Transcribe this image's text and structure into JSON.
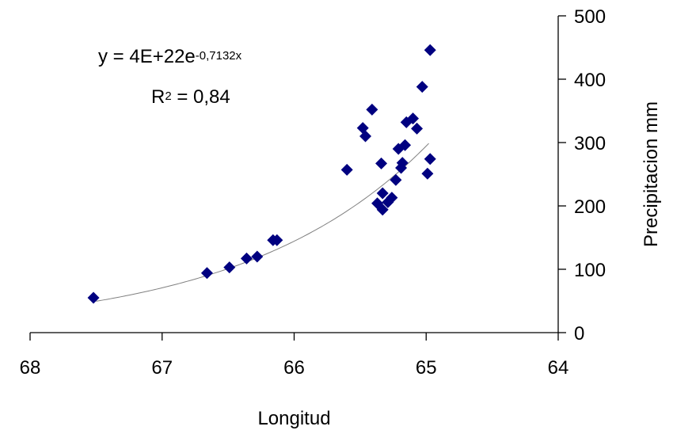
{
  "chart_data": {
    "type": "scatter",
    "xlabel": "Longitud",
    "ylabel": "Precipitacion mm",
    "xlim": [
      68,
      64
    ],
    "ylim": [
      0,
      500
    ],
    "x_reversed": true,
    "y_axis_position": "right",
    "x_ticks": [
      "68",
      "67",
      "66",
      "65",
      "64"
    ],
    "y_ticks": [
      "0",
      "100",
      "200",
      "300",
      "400",
      "500"
    ],
    "grid": false,
    "legend": "none",
    "marker_color": "#000080",
    "trendline_color": "#808080",
    "points": [
      {
        "x": 67.52,
        "y": 55
      },
      {
        "x": 66.66,
        "y": 94
      },
      {
        "x": 66.49,
        "y": 103
      },
      {
        "x": 66.36,
        "y": 117
      },
      {
        "x": 66.28,
        "y": 120
      },
      {
        "x": 66.16,
        "y": 146
      },
      {
        "x": 66.13,
        "y": 146
      },
      {
        "x": 65.6,
        "y": 257
      },
      {
        "x": 65.48,
        "y": 323
      },
      {
        "x": 65.46,
        "y": 310
      },
      {
        "x": 65.41,
        "y": 352
      },
      {
        "x": 65.37,
        "y": 204
      },
      {
        "x": 65.34,
        "y": 267
      },
      {
        "x": 65.33,
        "y": 194
      },
      {
        "x": 65.33,
        "y": 220
      },
      {
        "x": 65.29,
        "y": 206
      },
      {
        "x": 65.26,
        "y": 213
      },
      {
        "x": 65.23,
        "y": 241
      },
      {
        "x": 65.21,
        "y": 290
      },
      {
        "x": 65.19,
        "y": 260
      },
      {
        "x": 65.18,
        "y": 268
      },
      {
        "x": 65.16,
        "y": 296
      },
      {
        "x": 65.15,
        "y": 332
      },
      {
        "x": 65.1,
        "y": 338
      },
      {
        "x": 65.07,
        "y": 322
      },
      {
        "x": 65.03,
        "y": 388
      },
      {
        "x": 64.99,
        "y": 251
      },
      {
        "x": 64.97,
        "y": 274
      },
      {
        "x": 64.97,
        "y": 446
      }
    ],
    "trendline": {
      "type": "exponential",
      "coef_a": 4e+22,
      "coef_b": -0.7132,
      "x_range": [
        67.5,
        64.98
      ],
      "equation": {
        "lhs": "y = 4E+22e",
        "exponent": "-0,7132x"
      },
      "r_squared": {
        "lhs": "R",
        "exponent": "2",
        "rhs": " = 0,84"
      }
    }
  }
}
